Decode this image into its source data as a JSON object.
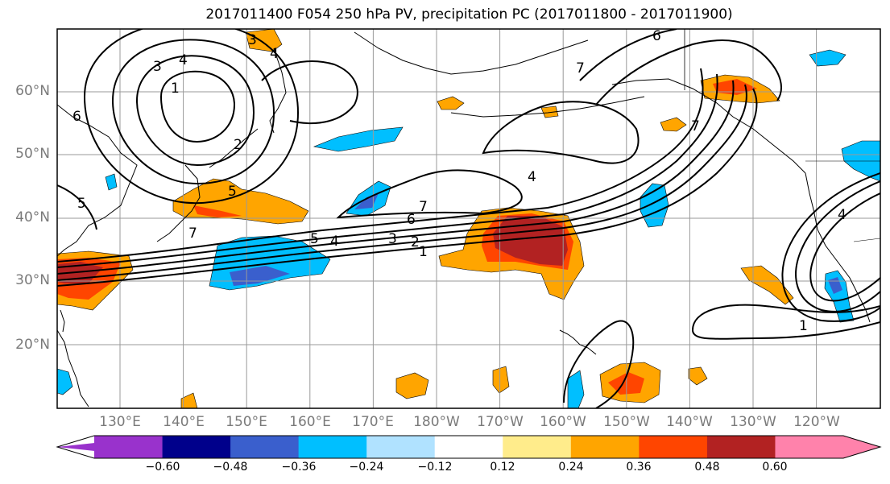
{
  "title": "2017011400 F054 250 hPa PV, precipitation PC (2017011800 - 2017011900)",
  "lat_labels": [
    "60°N",
    "50°N",
    "40°N",
    "30°N",
    "20°N"
  ],
  "lon_labels": [
    "130°E",
    "140°E",
    "150°E",
    "160°E",
    "170°E",
    "180°W",
    "170°W",
    "160°W",
    "150°W",
    "140°W",
    "130°W",
    "120°W"
  ],
  "contour_labels": [
    "1",
    "2",
    "3",
    "4",
    "5",
    "6",
    "7"
  ],
  "colorbar": {
    "colors": [
      "#9932cc",
      "#00008b",
      "#3a5fcd",
      "#00bfff",
      "#b0e2ff",
      "#ffffff",
      "#ffec8b",
      "#ffa500",
      "#ff4500",
      "#b22222",
      "#ff82ab"
    ],
    "tick_labels": [
      "−0.60",
      "−0.48",
      "−0.36",
      "−0.24",
      "−0.12",
      "0.12",
      "0.24",
      "0.36",
      "0.48",
      "0.60"
    ]
  }
}
